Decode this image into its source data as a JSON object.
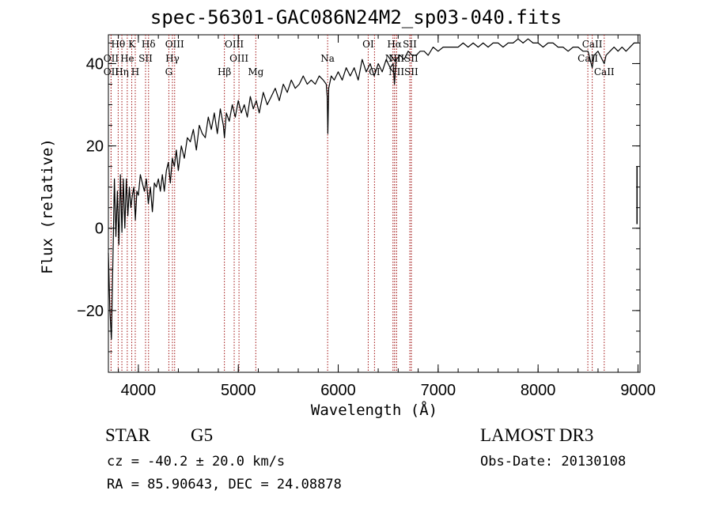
{
  "title": "spec-56301-GAC086N24M2_sp03-040.fits",
  "footer": {
    "class": "STAR",
    "subclass": "G5",
    "survey": "LAMOST DR3",
    "redshift": "cz = -40.2 ± 20.0 km/s",
    "obs_date": "Obs-Date: 20130108",
    "coords": "RA =  85.90643, DEC =  24.08878"
  },
  "chart_data": {
    "type": "line",
    "title": "spec-56301-GAC086N24M2_sp03-040.fits",
    "xlabel": "Wavelength (Å)",
    "ylabel": "Flux (relative)",
    "xlim": [
      3700,
      9020
    ],
    "ylim": [
      -35,
      47
    ],
    "grid": false,
    "xticks": [
      4000,
      5000,
      6000,
      7000,
      8000,
      9000
    ],
    "yticks": [
      -20,
      0,
      20,
      40
    ],
    "series": [
      {
        "name": "flux",
        "color": "#000000",
        "x": [
          3700,
          3715,
          3730,
          3745,
          3760,
          3775,
          3790,
          3805,
          3820,
          3835,
          3850,
          3865,
          3880,
          3895,
          3910,
          3925,
          3940,
          3955,
          3970,
          3985,
          4000,
          4020,
          4040,
          4060,
          4080,
          4100,
          4120,
          4140,
          4160,
          4180,
          4200,
          4220,
          4240,
          4260,
          4280,
          4300,
          4320,
          4340,
          4360,
          4380,
          4400,
          4430,
          4460,
          4490,
          4520,
          4550,
          4580,
          4610,
          4640,
          4670,
          4700,
          4730,
          4760,
          4790,
          4820,
          4850,
          4861,
          4880,
          4910,
          4940,
          4970,
          5000,
          5030,
          5060,
          5090,
          5120,
          5150,
          5180,
          5210,
          5250,
          5290,
          5330,
          5370,
          5410,
          5450,
          5490,
          5530,
          5570,
          5610,
          5650,
          5690,
          5730,
          5770,
          5810,
          5850,
          5880,
          5890,
          5896,
          5905,
          5930,
          5960,
          6000,
          6040,
          6080,
          6120,
          6160,
          6200,
          6240,
          6280,
          6320,
          6360,
          6400,
          6440,
          6480,
          6520,
          6550,
          6563,
          6580,
          6620,
          6660,
          6700,
          6740,
          6780,
          6820,
          6860,
          6900,
          6950,
          7000,
          7050,
          7100,
          7150,
          7200,
          7250,
          7300,
          7350,
          7400,
          7450,
          7500,
          7550,
          7600,
          7650,
          7700,
          7750,
          7800,
          7850,
          7900,
          7950,
          8000,
          8050,
          8100,
          8150,
          8200,
          8250,
          8300,
          8350,
          8400,
          8450,
          8500,
          8542,
          8560,
          8600,
          8662,
          8680,
          8720,
          8760,
          8800,
          8840,
          8880,
          8920,
          8960,
          8990
        ],
        "values": [
          -6,
          -20,
          -27,
          -8,
          12,
          -2,
          9,
          -4,
          13,
          -1,
          12,
          0,
          12,
          3,
          10,
          5,
          8,
          10,
          2,
          9,
          8,
          13,
          11,
          9,
          12,
          6,
          10,
          4,
          11,
          10,
          12,
          9,
          13,
          9,
          14,
          16,
          11,
          17,
          15,
          19,
          14,
          20,
          17,
          22,
          21,
          24,
          19,
          25,
          23,
          22,
          27,
          24,
          28,
          23,
          29,
          25,
          22,
          28,
          26,
          30,
          27,
          31,
          28,
          30,
          27,
          32,
          29,
          31,
          28,
          33,
          30,
          32,
          34,
          31,
          35,
          33,
          36,
          34,
          35,
          37,
          35,
          36,
          35,
          37,
          36,
          35,
          32,
          23,
          34,
          37,
          36,
          38,
          36,
          39,
          37,
          39,
          36,
          41,
          38,
          40,
          37,
          40,
          38,
          41,
          39,
          40,
          35,
          41,
          42,
          41,
          43,
          42,
          42,
          43,
          43,
          42,
          44,
          43,
          44,
          44,
          44,
          44,
          45,
          44,
          45,
          44,
          45,
          44,
          45,
          45,
          44,
          45,
          45,
          46,
          45,
          46,
          45,
          45,
          44,
          45,
          45,
          44,
          44,
          43,
          44,
          44,
          43,
          43,
          39,
          42,
          43,
          40,
          42,
          43,
          44,
          43,
          44,
          43,
          44,
          45,
          45
        ]
      }
    ],
    "line_markers": [
      {
        "name": "Hθ",
        "wavelength": 3798,
        "row": 1
      },
      {
        "name": "OII",
        "wavelength": 3727,
        "row": 2
      },
      {
        "name": "OII",
        "wavelength": 3727,
        "row": 3
      },
      {
        "name": "Hη",
        "wavelength": 3835,
        "row": 3
      },
      {
        "name": "He",
        "wavelength": 3889,
        "row": 2
      },
      {
        "name": "K",
        "wavelength": 3934,
        "row": 1
      },
      {
        "name": "H",
        "wavelength": 3969,
        "row": 3
      },
      {
        "name": "SII",
        "wavelength": 4072,
        "row": 2
      },
      {
        "name": "Hδ",
        "wavelength": 4102,
        "row": 1
      },
      {
        "name": "OIII",
        "wavelength": 4363,
        "row": 1
      },
      {
        "name": "Hγ",
        "wavelength": 4341,
        "row": 2
      },
      {
        "name": "G",
        "wavelength": 4305,
        "row": 3
      },
      {
        "name": "Hβ",
        "wavelength": 4861,
        "row": 3
      },
      {
        "name": "OIII",
        "wavelength": 4959,
        "row": 1
      },
      {
        "name": "OIII",
        "wavelength": 5007,
        "row": 2
      },
      {
        "name": "Mg",
        "wavelength": 5175,
        "row": 3
      },
      {
        "name": "Na",
        "wavelength": 5894,
        "row": 2
      },
      {
        "name": "OI",
        "wavelength": 6300,
        "row": 1
      },
      {
        "name": "OI",
        "wavelength": 6363,
        "row": 3
      },
      {
        "name": "Hα",
        "wavelength": 6563,
        "row": 1
      },
      {
        "name": "NII",
        "wavelength": 6548,
        "row": 2
      },
      {
        "name": "NII",
        "wavelength": 6583,
        "row": 2
      },
      {
        "name": "NII",
        "wavelength": 6583,
        "row": 3
      },
      {
        "name": "SII",
        "wavelength": 6716,
        "row": 1
      },
      {
        "name": "SII",
        "wavelength": 6731,
        "row": 2
      },
      {
        "name": "SII",
        "wavelength": 6731,
        "row": 3
      },
      {
        "name": "CaII",
        "wavelength": 8542,
        "row": 1
      },
      {
        "name": "CaII",
        "wavelength": 8498,
        "row": 2
      },
      {
        "name": "CaII",
        "wavelength": 8662,
        "row": 3
      }
    ]
  }
}
